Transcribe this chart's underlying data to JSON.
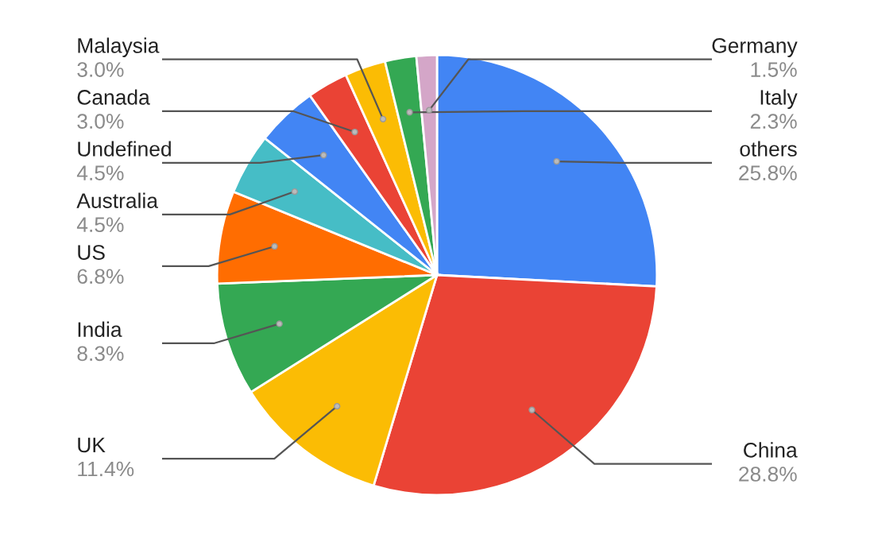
{
  "chart_data": {
    "type": "pie",
    "categories": [
      "others",
      "China",
      "UK",
      "India",
      "US",
      "Australia",
      "Undefined",
      "Canada",
      "Malaysia",
      "Italy",
      "Germany"
    ],
    "values": [
      25.8,
      28.8,
      11.4,
      8.3,
      6.8,
      4.5,
      4.5,
      3.0,
      3.0,
      2.3,
      1.5
    ],
    "value_labels": [
      "25.8%",
      "28.8%",
      "11.4%",
      "8.3%",
      "6.8%",
      "4.5%",
      "4.5%",
      "3.0%",
      "3.0%",
      "2.3%",
      "1.5%"
    ],
    "colors": [
      "#4285f4",
      "#ea4335",
      "#fbbc04",
      "#34a853",
      "#ff6d01",
      "#46bdc6",
      "#4285f4",
      "#ea4335",
      "#fbbc04",
      "#34a853",
      "#d4a6c8"
    ],
    "legend": false
  }
}
